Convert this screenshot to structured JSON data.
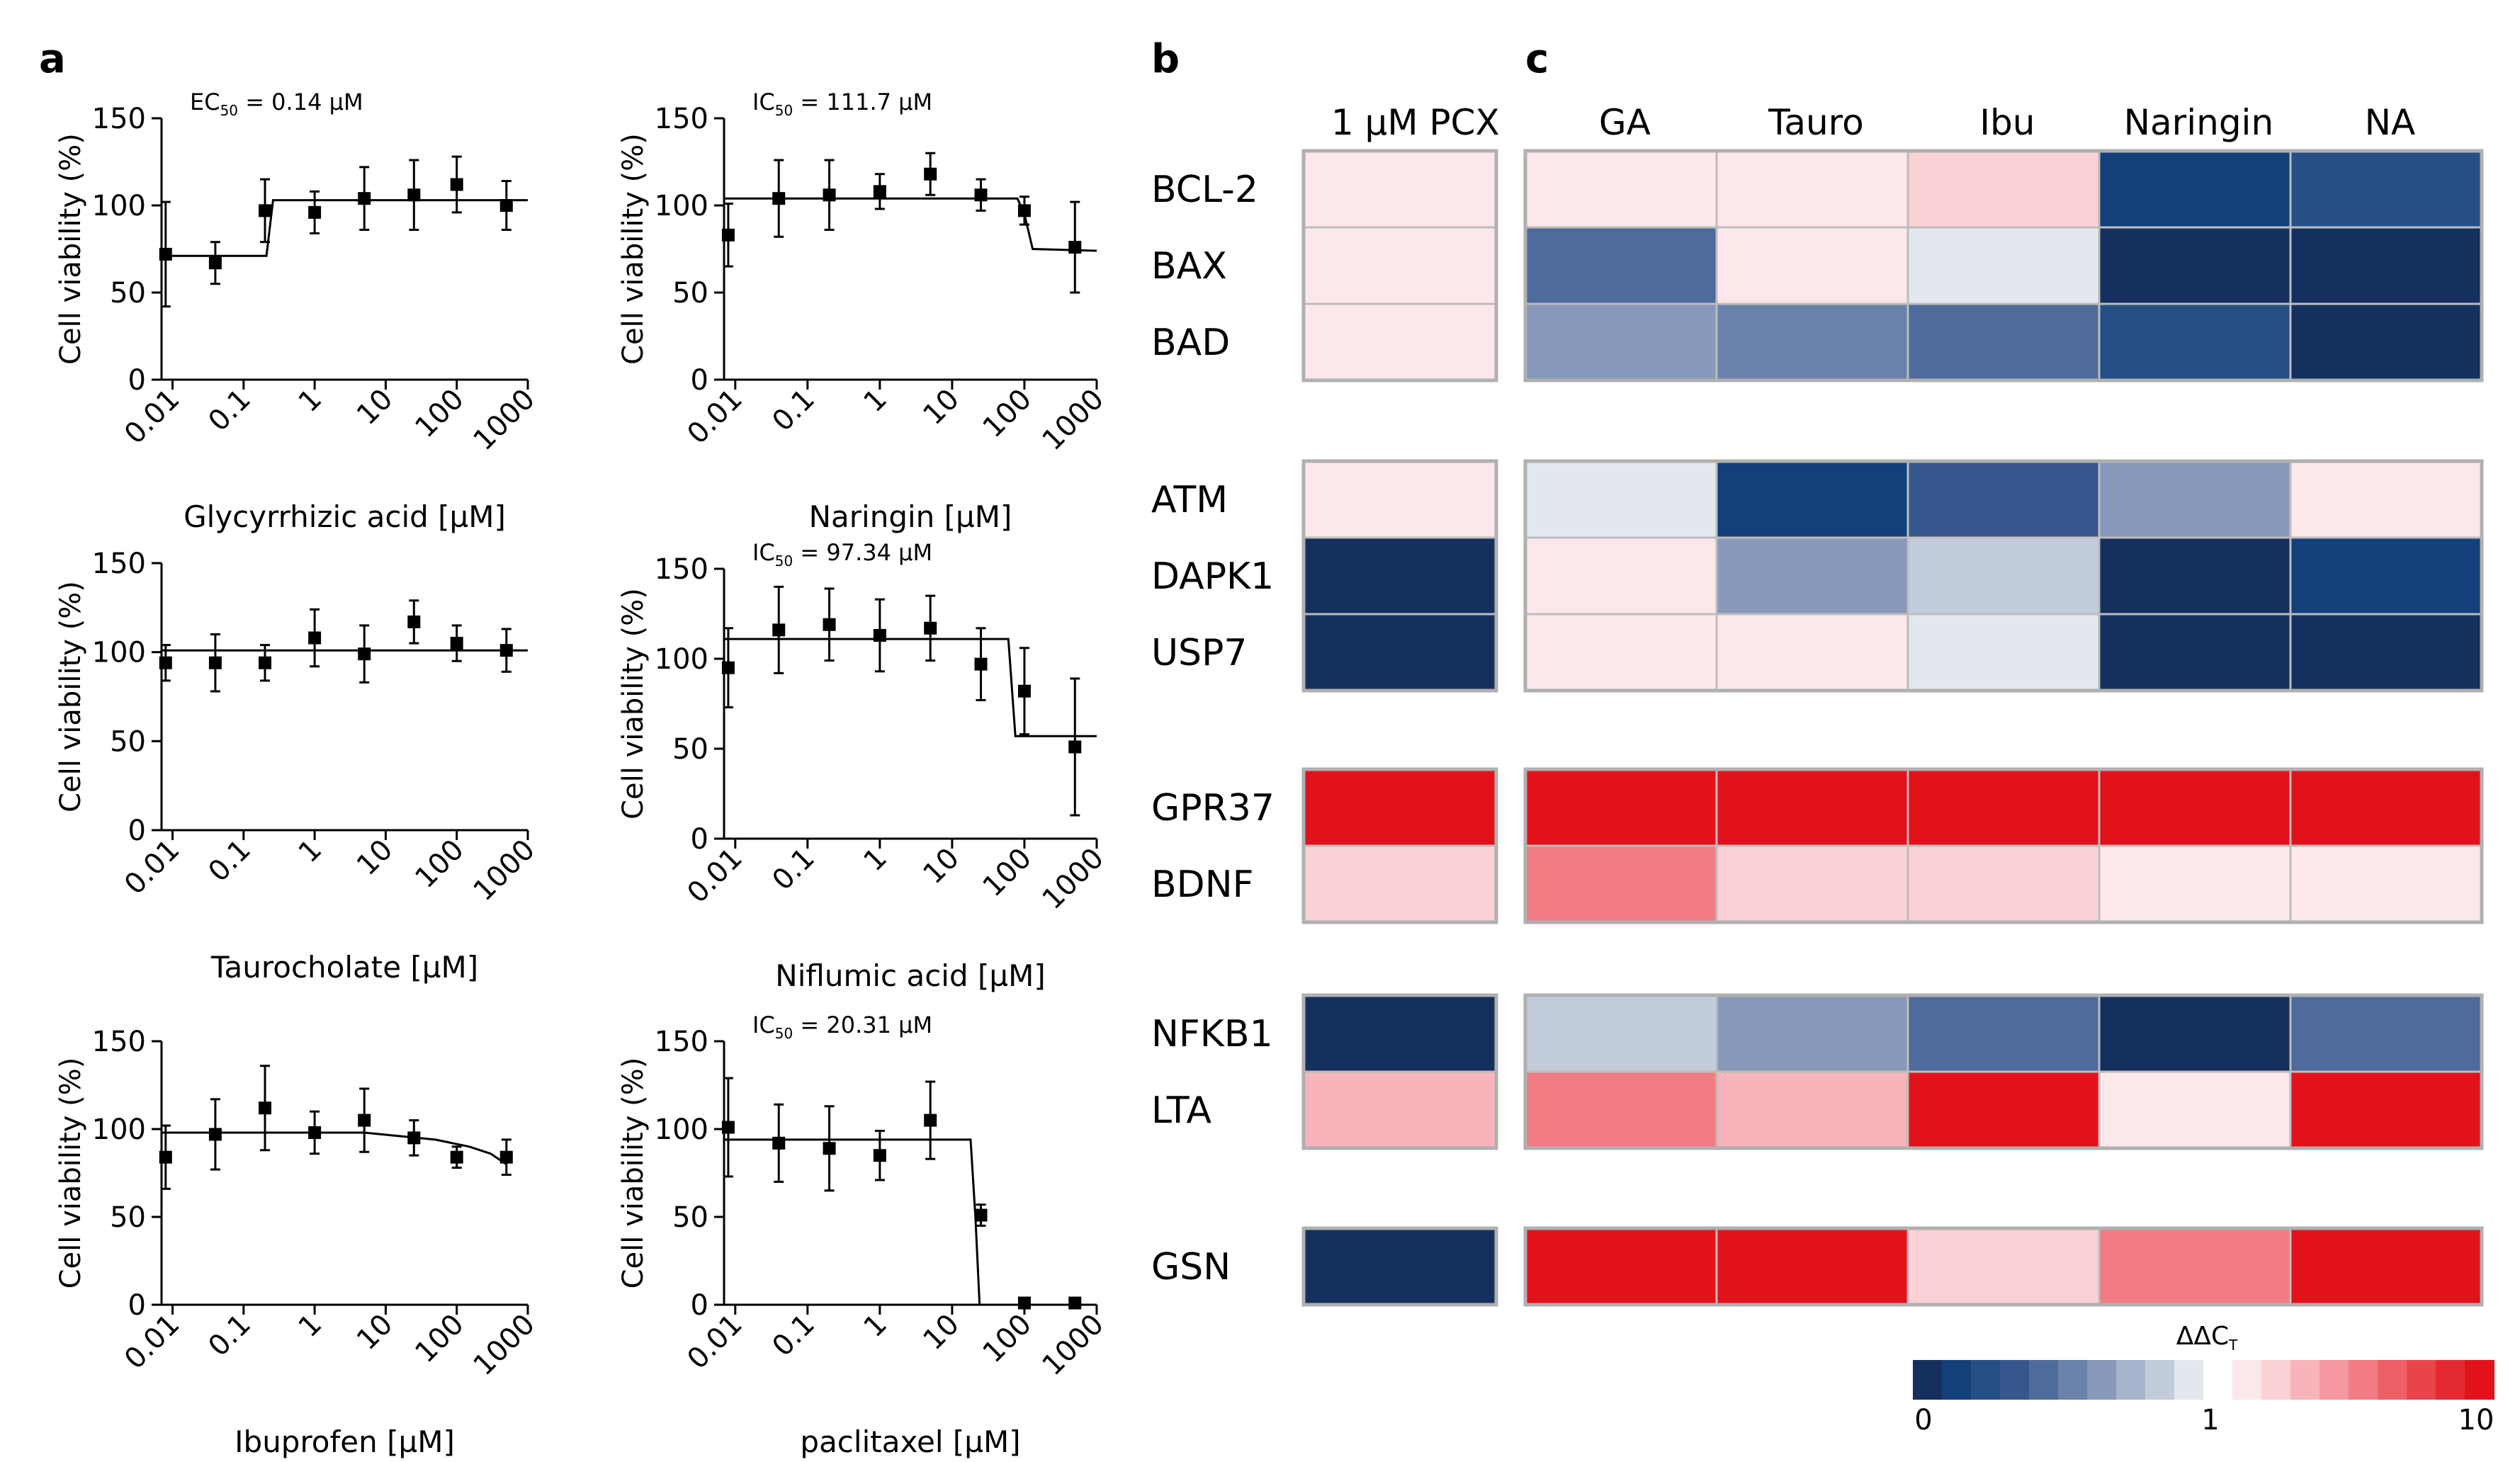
{
  "panels": {
    "a": "a",
    "b": "b",
    "c": "c"
  },
  "chart_data": [
    {
      "type": "scatter",
      "panel": "a",
      "xlabel": "Glycyrrhizic acid [µM]",
      "ylabel": "Cell viability (%)",
      "xscale": "log",
      "xlim": [
        0.007,
        1000
      ],
      "ylim": [
        0,
        150
      ],
      "xticks": [
        "0.01",
        "0.1",
        "1",
        "10",
        "100",
        "1000"
      ],
      "yticks": [
        "0",
        "50",
        "100",
        "150"
      ],
      "annotation": {
        "pre": "EC",
        "sub": "50",
        "post": " = 0.14 µM"
      },
      "x": [
        0.008,
        0.04,
        0.2,
        1,
        5,
        25,
        100,
        500
      ],
      "y": [
        72,
        67,
        97,
        96,
        104,
        106,
        112,
        100
      ],
      "yerr": [
        30,
        12,
        18,
        12,
        18,
        20,
        16,
        14
      ],
      "fit": [
        [
          0.007,
          71
        ],
        [
          0.21,
          71
        ],
        [
          0.26,
          103
        ],
        [
          1000,
          103
        ]
      ]
    },
    {
      "type": "scatter",
      "panel": "a",
      "xlabel": "Naringin [µM]",
      "ylabel": "Cell viability (%)",
      "xscale": "log",
      "xlim": [
        0.007,
        1000
      ],
      "ylim": [
        0,
        150
      ],
      "xticks": [
        "0.01",
        "0.1",
        "1",
        "10",
        "100",
        "1000"
      ],
      "yticks": [
        "0",
        "50",
        "100",
        "150"
      ],
      "annotation": {
        "pre": "IC",
        "sub": "50",
        "post": " = 111.7 µM"
      },
      "x": [
        0.008,
        0.04,
        0.2,
        1,
        5,
        25,
        100,
        500
      ],
      "y": [
        83,
        104,
        106,
        108,
        118,
        106,
        97,
        76
      ],
      "yerr": [
        18,
        22,
        20,
        10,
        12,
        9,
        8,
        26
      ],
      "fit": [
        [
          0.007,
          104
        ],
        [
          80,
          104
        ],
        [
          100,
          95
        ],
        [
          130,
          75
        ],
        [
          1000,
          74
        ]
      ]
    },
    {
      "type": "scatter",
      "panel": "a",
      "xlabel": "Taurocholate [µM]",
      "ylabel": "Cell viability (%)",
      "xscale": "log",
      "xlim": [
        0.007,
        1000
      ],
      "ylim": [
        0,
        150
      ],
      "xticks": [
        "0.01",
        "0.1",
        "1",
        "10",
        "100",
        "1000"
      ],
      "yticks": [
        "0",
        "50",
        "100",
        "150"
      ],
      "annotation": null,
      "x": [
        0.008,
        0.04,
        0.2,
        1,
        5,
        25,
        100,
        500
      ],
      "y": [
        94,
        94,
        94,
        108,
        99,
        117,
        105,
        101
      ],
      "yerr": [
        10,
        16,
        10,
        16,
        16,
        12,
        10,
        12
      ],
      "fit": [
        [
          0.007,
          101
        ],
        [
          1000,
          101
        ]
      ]
    },
    {
      "type": "scatter",
      "panel": "a",
      "xlabel": "Niflumic acid [µM]",
      "ylabel": "Cell viability (%)",
      "xscale": "log",
      "xlim": [
        0.007,
        1000
      ],
      "ylim": [
        0,
        150
      ],
      "xticks": [
        "0.01",
        "0.1",
        "1",
        "10",
        "100",
        "1000"
      ],
      "yticks": [
        "0",
        "50",
        "100",
        "150"
      ],
      "annotation": {
        "pre": "IC",
        "sub": "50",
        "post": " = 97.34 µM"
      },
      "x": [
        0.008,
        0.04,
        0.2,
        1,
        5,
        25,
        100,
        500
      ],
      "y": [
        95,
        116,
        119,
        113,
        117,
        97,
        82,
        51
      ],
      "yerr": [
        22,
        24,
        20,
        20,
        18,
        20,
        24,
        38
      ],
      "fit": [
        [
          0.007,
          111
        ],
        [
          60,
          111
        ],
        [
          75,
          57
        ],
        [
          1000,
          57
        ]
      ]
    },
    {
      "type": "scatter",
      "panel": "a",
      "xlabel": "Ibuprofen [µM]",
      "ylabel": "Cell viability (%)",
      "xscale": "log",
      "xlim": [
        0.007,
        1000
      ],
      "ylim": [
        0,
        150
      ],
      "xticks": [
        "0.01",
        "0.1",
        "1",
        "10",
        "100",
        "1000"
      ],
      "yticks": [
        "0",
        "50",
        "100",
        "150"
      ],
      "annotation": null,
      "x": [
        0.008,
        0.04,
        0.2,
        1,
        5,
        25,
        100,
        500
      ],
      "y": [
        84,
        97,
        112,
        98,
        105,
        95,
        84,
        84
      ],
      "yerr": [
        18,
        20,
        24,
        12,
        18,
        10,
        6,
        10
      ],
      "fit": [
        [
          0.007,
          98
        ],
        [
          5,
          98
        ],
        [
          50,
          94
        ],
        [
          150,
          90
        ],
        [
          300,
          86
        ],
        [
          500,
          80
        ]
      ]
    },
    {
      "type": "scatter",
      "panel": "a",
      "xlabel": "paclitaxel [µM]",
      "ylabel": "Cell viability (%)",
      "xscale": "log",
      "xlim": [
        0.007,
        1000
      ],
      "ylim": [
        0,
        150
      ],
      "xticks": [
        "0.01",
        "0.1",
        "1",
        "10",
        "100",
        "1000"
      ],
      "yticks": [
        "0",
        "50",
        "100",
        "150"
      ],
      "annotation": {
        "pre": "IC",
        "sub": "50",
        "post": " = 20.31 µM"
      },
      "x": [
        0.008,
        0.04,
        0.2,
        1,
        5,
        25,
        100,
        500
      ],
      "y": [
        101,
        92,
        89,
        85,
        105,
        51,
        1,
        1
      ],
      "yerr": [
        28,
        22,
        24,
        14,
        22,
        6,
        2,
        2
      ],
      "fit": [
        [
          0.007,
          94
        ],
        [
          18,
          94
        ],
        [
          21,
          50
        ],
        [
          24,
          0
        ],
        [
          1000,
          0
        ]
      ]
    },
    {
      "type": "heatmap",
      "panel": "b",
      "columns": [
        "1 µM PCX"
      ],
      "groups": [
        {
          "genes": [
            "BCL-2",
            "BAX",
            "BAD"
          ],
          "values": [
            [
              1.3
            ],
            [
              1.25
            ],
            [
              1.25
            ]
          ]
        },
        {
          "genes": [
            "ATM",
            "DAPK1",
            "USP7"
          ],
          "values": [
            [
              1.1
            ],
            [
              0.02
            ],
            [
              0.05
            ]
          ]
        },
        {
          "genes": [
            "GPR37",
            "BDNF"
          ],
          "values": [
            [
              10
            ],
            [
              2.2
            ]
          ]
        },
        {
          "genes": [
            "NFKB1",
            "LTA"
          ],
          "values": [
            [
              0.02
            ],
            [
              3.5
            ]
          ]
        },
        {
          "genes": [
            "GSN"
          ],
          "values": [
            [
              0.04
            ]
          ]
        }
      ]
    },
    {
      "type": "heatmap",
      "panel": "c",
      "columns": [
        "GA",
        "Tauro",
        "Ibu",
        "Naringin",
        "NA"
      ],
      "groups": [
        {
          "genes": [
            "BCL-2",
            "BAX",
            "BAD"
          ],
          "values": [
            [
              1.25,
              1.3,
              2.2,
              0.12,
              0.25
            ],
            [
              0.4,
              1.02,
              0.93,
              0.02,
              0.03
            ],
            [
              0.6,
              0.5,
              0.42,
              0.2,
              0.04
            ]
          ]
        },
        {
          "genes": [
            "ATM",
            "DAPK1",
            "USP7"
          ],
          "values": [
            [
              0.95,
              0.18,
              0.35,
              0.6,
              1.2
            ],
            [
              1.05,
              0.62,
              0.82,
              0.02,
              0.15
            ],
            [
              1.1,
              1.03,
              0.95,
              0.02,
              0.02
            ]
          ]
        },
        {
          "genes": [
            "GPR37",
            "BDNF"
          ],
          "values": [
            [
              10,
              10,
              10,
              10,
              10
            ],
            [
              5,
              2.4,
              2.2,
              1.03,
              1.35
            ]
          ]
        },
        {
          "genes": [
            "NFKB1",
            "LTA"
          ],
          "values": [
            [
              0.8,
              0.65,
              0.4,
              0.04,
              0.42
            ],
            [
              5,
              3,
              10,
              1.08,
              10
            ]
          ]
        },
        {
          "genes": [
            "GSN"
          ],
          "values": [
            [
              10,
              10,
              1.6,
              5.5,
              10
            ]
          ]
        }
      ]
    }
  ],
  "colorbar": {
    "title": {
      "main": "ΔΔC",
      "sub": "T"
    },
    "ticks": [
      "0",
      "1",
      "10"
    ],
    "blues": [
      "#15305e",
      "#133f7b",
      "#264f86",
      "#36578d",
      "#4d6b9b",
      "#6b82ab",
      "#8899bb",
      "#a5b3cc",
      "#c3ccdb",
      "#e3e7ee"
    ],
    "reds": [
      "#fce8ea",
      "#fad1d5",
      "#f7b5bb",
      "#f598a0",
      "#f17c84",
      "#ed6068",
      "#e9444c",
      "#e32a33",
      "#e2121b"
    ]
  },
  "colors": {
    "accent_red": "#e2121b",
    "accent_blue": "#15305e",
    "cell_border": "#bdbdbd"
  }
}
